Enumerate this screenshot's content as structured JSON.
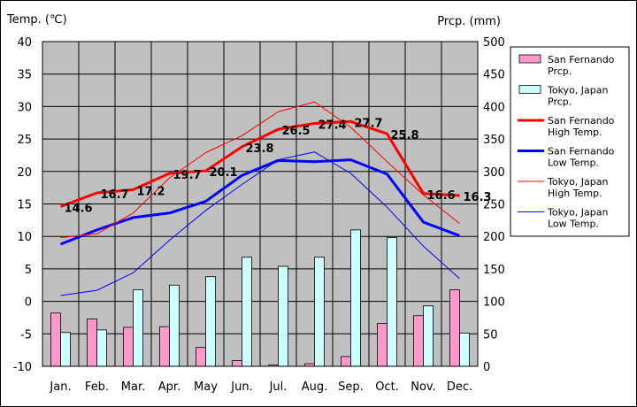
{
  "chart_data": {
    "type": "bar+line",
    "left_axis_title": "Temp. (℃)",
    "right_axis_title": "Prcp. (mm)",
    "left_ylim": [
      -10,
      40
    ],
    "left_ticks": [
      "40",
      "35",
      "30",
      "25",
      "20",
      "15",
      "10",
      "5",
      "0",
      "-5",
      "-10"
    ],
    "right_ylim": [
      0,
      500
    ],
    "right_ticks": [
      "500",
      "450",
      "400",
      "350",
      "300",
      "250",
      "200",
      "150",
      "100",
      "50",
      "0"
    ],
    "categories": [
      "Jan.",
      "Feb.",
      "Mar.",
      "Apr.",
      "May",
      "Jun.",
      "Jul.",
      "Aug.",
      "Sep.",
      "Oct.",
      "Nov.",
      "Dec."
    ],
    "bars": [
      {
        "legend": [
          "San Fernando",
          "Prcp."
        ],
        "color": "#ff99cc",
        "values": [
          82,
          73,
          60,
          61,
          29,
          9,
          2,
          4,
          15,
          66,
          78,
          118
        ]
      },
      {
        "legend": [
          "Tokyo, Japan",
          "Prcp."
        ],
        "color": "#ccffff",
        "values": [
          52,
          56,
          118,
          125,
          138,
          168,
          154,
          168,
          210,
          198,
          93,
          51
        ]
      }
    ],
    "lines": [
      {
        "legend": [
          "San Fernando",
          "High Temp."
        ],
        "color": "#ff0000",
        "width": 3,
        "values": [
          14.6,
          16.7,
          17.2,
          19.7,
          20.1,
          23.8,
          26.5,
          27.4,
          27.7,
          25.8,
          16.6,
          16.3
        ]
      },
      {
        "legend": [
          "San Fernando",
          "Low Temp."
        ],
        "color": "#0000ff",
        "width": 3,
        "values": [
          8.8,
          11.0,
          12.9,
          13.6,
          15.4,
          19.4,
          21.7,
          21.5,
          21.8,
          19.6,
          12.2,
          10.1
        ]
      },
      {
        "legend": [
          "Tokyo, Japan",
          "High Temp."
        ],
        "color": "#ff0000",
        "width": 1,
        "values": [
          9.8,
          10.4,
          13.6,
          19.0,
          22.9,
          25.5,
          29.2,
          30.7,
          26.8,
          21.5,
          16.4,
          12.0
        ]
      },
      {
        "legend": [
          "Tokyo, Japan",
          "Low Temp."
        ],
        "color": "#0000ff",
        "width": 1,
        "values": [
          0.9,
          1.7,
          4.4,
          9.4,
          14.0,
          18.0,
          21.8,
          23.0,
          19.7,
          14.5,
          8.5,
          3.5
        ]
      }
    ],
    "data_labels": [
      "14.6",
      "16.7",
      "17.2",
      "19.7",
      "20.1",
      "23.8",
      "26.5",
      "27.4",
      "27.7",
      "25.8",
      "16.6",
      "16.3"
    ],
    "grid": true,
    "plot_background": "#c0c0c0",
    "legend_position": "right"
  }
}
